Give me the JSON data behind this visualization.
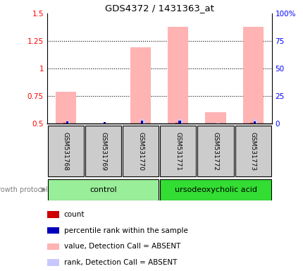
{
  "title": "GDS4372 / 1431363_at",
  "samples": [
    "GSM531768",
    "GSM531769",
    "GSM531770",
    "GSM531771",
    "GSM531772",
    "GSM531773"
  ],
  "group_colors": [
    "#99ee99",
    "#33dd33"
  ],
  "group_extents": [
    {
      "label": "control",
      "start": 0,
      "end": 2,
      "color": "#99ee99"
    },
    {
      "label": "ursodeoxycholic acid",
      "start": 3,
      "end": 5,
      "color": "#33dd33"
    }
  ],
  "ylim_left": [
    0.5,
    1.5
  ],
  "ylim_right": [
    0,
    100
  ],
  "yticks_left": [
    0.5,
    0.75,
    1.0,
    1.25,
    1.5
  ],
  "yticks_right": [
    0,
    25,
    50,
    75,
    100
  ],
  "ytick_labels_left": [
    "0.5",
    "0.75",
    "1",
    "1.25",
    "1.5"
  ],
  "ytick_labels_right": [
    "0",
    "25",
    "50",
    "75",
    "100%"
  ],
  "dotted_lines": [
    0.75,
    1.0,
    1.25
  ],
  "value_bars": [
    0.79,
    0.5,
    1.19,
    1.38,
    0.6,
    1.38
  ],
  "rank_bars": [
    0.52,
    0.505,
    0.535,
    0.535,
    0.505,
    0.535
  ],
  "count_bars": [
    0.506,
    0.0,
    0.0,
    0.506,
    0.0,
    0.506
  ],
  "pct_rank_bars": [
    0.516,
    0.509,
    0.522,
    0.522,
    0.0,
    0.516
  ],
  "bar_bottom": 0.5,
  "value_color": "#ffb3b3",
  "rank_color": "#c8c8ff",
  "count_color": "#cc0000",
  "pct_rank_color": "#0000bb",
  "label_area_color": "#cccccc",
  "legend_items": [
    {
      "color": "#cc0000",
      "label": "count"
    },
    {
      "color": "#0000bb",
      "label": "percentile rank within the sample"
    },
    {
      "color": "#ffb3b3",
      "label": "value, Detection Call = ABSENT"
    },
    {
      "color": "#c8c8ff",
      "label": "rank, Detection Call = ABSENT"
    }
  ],
  "growth_protocol_label": "growth protocol"
}
